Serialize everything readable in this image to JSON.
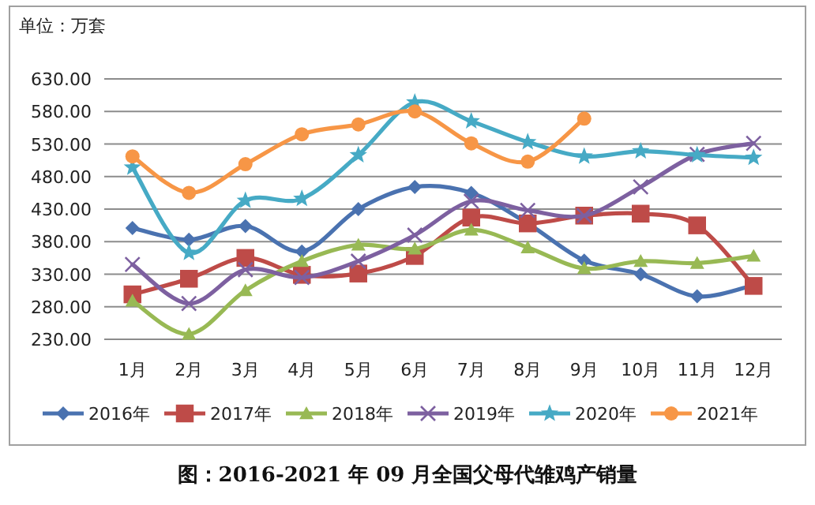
{
  "chart_data": {
    "type": "line",
    "title": "图：2016-2021 年 09 月全国父母代雏鸡产销量",
    "ylabel": "单位：万套",
    "categories": [
      "1月",
      "2月",
      "3月",
      "4月",
      "5月",
      "6月",
      "7月",
      "8月",
      "9月",
      "10月",
      "11月",
      "12月"
    ],
    "ylim": [
      230,
      630
    ],
    "yticks": [
      {
        "value": 230,
        "label": "230.00"
      },
      {
        "value": 280,
        "label": "280.00"
      },
      {
        "value": 330,
        "label": "330.00"
      },
      {
        "value": 380,
        "label": "380.00"
      },
      {
        "value": 430,
        "label": "430.00"
      },
      {
        "value": 480,
        "label": "480.00"
      },
      {
        "value": 530,
        "label": "530.00"
      },
      {
        "value": 580,
        "label": "580.00"
      },
      {
        "value": 630,
        "label": "630.00"
      }
    ],
    "grid": "y",
    "legend": "bottom",
    "line_style": "solid",
    "series": [
      {
        "name": "2016年",
        "color": "#4a72b0",
        "marker": "diamond",
        "values": [
          401,
          383,
          404,
          365,
          430,
          464,
          455,
          408,
          351,
          330,
          296,
          313
        ]
      },
      {
        "name": "2017年",
        "color": "#be4b48",
        "marker": "square",
        "values": [
          299,
          323,
          355,
          329,
          331,
          358,
          417,
          408,
          420,
          423,
          405,
          312
        ]
      },
      {
        "name": "2018年",
        "color": "#98b954",
        "marker": "triangle",
        "values": [
          289,
          238,
          305,
          350,
          375,
          369,
          398,
          371,
          339,
          350,
          347,
          358
        ]
      },
      {
        "name": "2019年",
        "color": "#7d60a0",
        "marker": "cross",
        "values": [
          345,
          285,
          337,
          325,
          350,
          390,
          442,
          428,
          420,
          464,
          514,
          531
        ]
      },
      {
        "name": "2020年",
        "color": "#46aac5",
        "marker": "star",
        "values": [
          494,
          363,
          443,
          446,
          513,
          594,
          565,
          533,
          511,
          519,
          513,
          509
        ]
      },
      {
        "name": "2021年",
        "color": "#f79646",
        "marker": "circle",
        "values": [
          511,
          455,
          499,
          545,
          560,
          580,
          531,
          503,
          569,
          null,
          null,
          null
        ]
      }
    ]
  }
}
